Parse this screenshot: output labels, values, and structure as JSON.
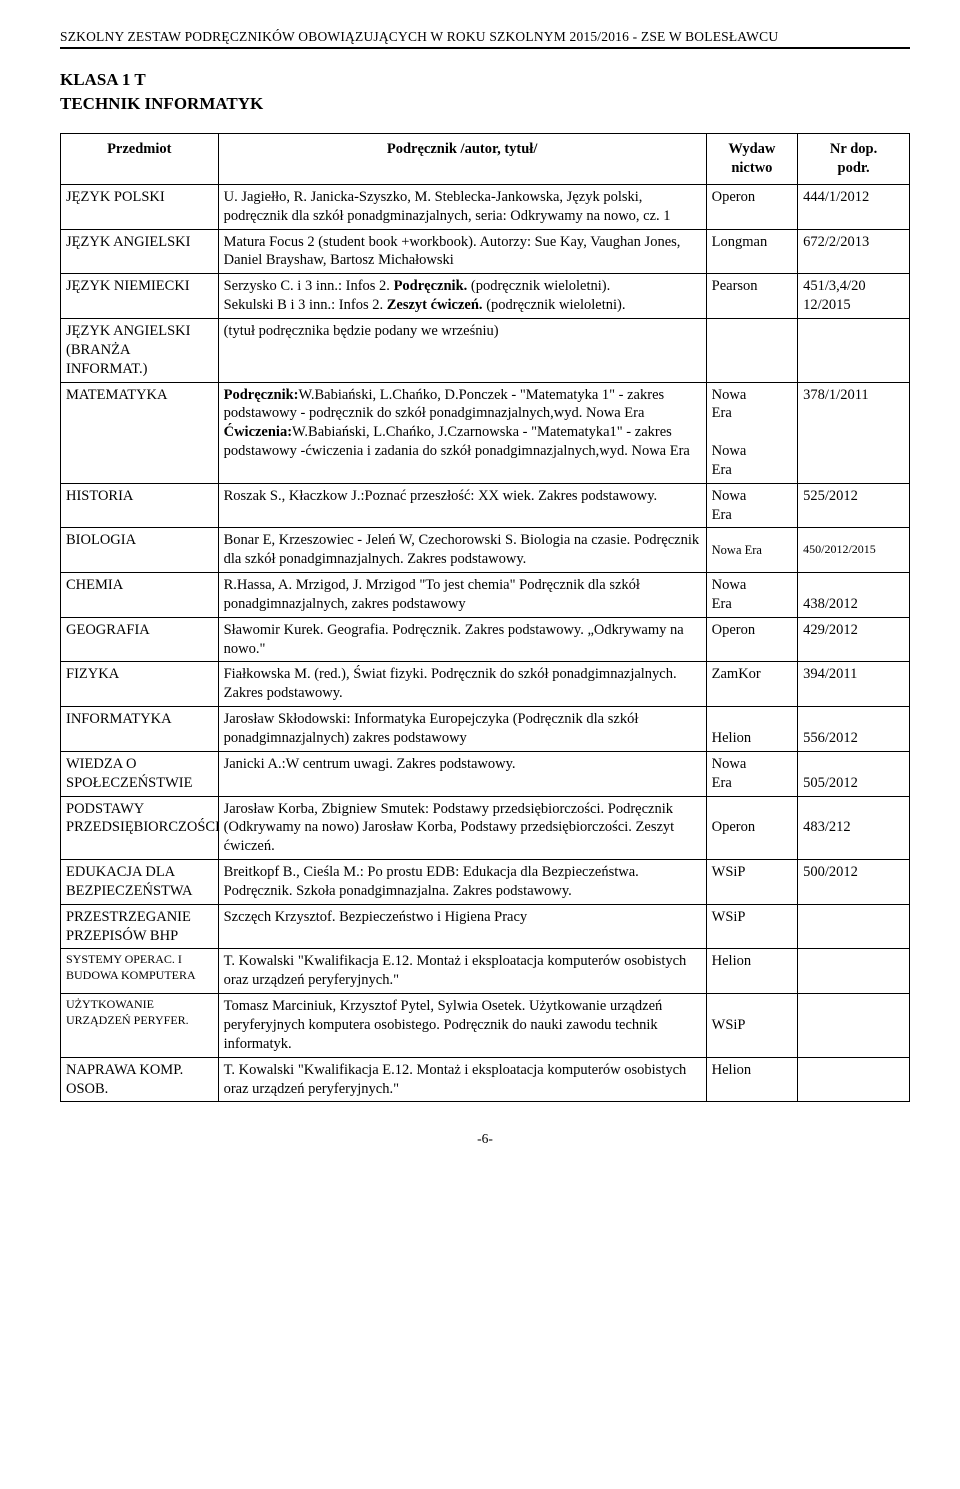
{
  "header": "SZKOLNY ZESTAW PODRĘCZNIKÓW OBOWIĄZUJĄCYCH W ROKU SZKOLNYM 2015/2016 - ZSE W BOLESŁAWCU",
  "klasa_line1": "KLASA 1 T",
  "klasa_line2": "TECHNIK  INFORMATYK",
  "columns": {
    "c1": "Przedmiot",
    "c2": "Podręcznik /autor, tytuł/",
    "c3_l1": "Wydaw",
    "c3_l2": "nictwo",
    "c4_l1": "Nr dop.",
    "c4_l2": "podr."
  },
  "rows": [
    {
      "subject": "JĘZYK POLSKI",
      "text": "U. Jagiełło, R. Janicka-Szyszko, M. Steblecka-Jankowska, Język polski, podręcznik dla szkół ponadgminazjalnych, seria: Odkrywamy na nowo, cz. 1",
      "pub": "Operon",
      "num": "444/1/2012"
    },
    {
      "subject": "JĘZYK ANGIELSKI",
      "text": "Matura Focus 2 (student book +workbook).\nAutorzy: Sue Kay, Vaughan Jones, Daniel Brayshaw, Bartosz Michałowski",
      "pub": "Longman",
      "num": "672/2/2013"
    },
    {
      "subject": "JĘZYK NIEMIECKI",
      "text_html": "Serzysko C. i 3 inn.: Infos 2. <b>Podręcznik.</b> (podręcznik wieloletni).<br>Sekulski B i 3 inn.: Infos 2. <b>Zeszyt ćwiczeń.</b> (podręcznik wieloletni).",
      "pub": "Pearson",
      "num": "451/3,4/20\n12/2015"
    },
    {
      "subject": "JĘZYK ANGIELSKI (BRANŻA INFORMAT.)",
      "text": "(tytuł podręcznika będzie podany we wrześniu)",
      "pub": "",
      "num": ""
    },
    {
      "subject": "MATEMATYKA",
      "text_html": "<b>Podręcznik:</b>W.Babiański, L.Chańko, D.Ponczek - \"Matematyka 1\" - zakres podstawowy - podręcznik do szkół ponadgimnazjalnych,wyd. Nowa Era<br><b>Ćwiczenia:</b>W.Babiański, L.Chańko, J.Czarnowska - \"Matematyka1\" - zakres podstawowy -ćwiczenia i zadania do szkół ponadgimnazjalnych,wyd. Nowa Era",
      "pub_html": "Nowa<br>Era<br><br>Nowa<br>Era",
      "num": "378/1/2011"
    },
    {
      "subject": "HISTORIA",
      "text": "Roszak S., Kłaczkow J.:Poznać przeszłość: XX wiek. Zakres podstawowy.",
      "pub_html": "Nowa<br>Era",
      "num": "525/2012"
    },
    {
      "subject": "BIOLOGIA",
      "text": "Bonar E, Krzeszowiec - Jeleń W, Czechorowski S. Biologia na czasie. Podręcznik dla szkół ponadgimnazjalnych. Zakres podstawowy.",
      "pub": "Nowa Era",
      "num": "450/2012/2015",
      "pub_small": true,
      "num_small": true,
      "pub_valign": "middle",
      "num_valign": "middle"
    },
    {
      "subject": "CHEMIA",
      "text": "R.Hassa, A. Mrzigod, J. Mrzigod \"To jest chemia\" Podręcznik dla szkół ponadgimnazjalnych, zakres podstawowy",
      "pub_html": "Nowa<br>Era",
      "num_html": "<br>438/2012"
    },
    {
      "subject": "GEOGRAFIA",
      "text": "Sławomir Kurek. Geografia. Podręcznik. Zakres podstawowy. „Odkrywamy na nowo.\"",
      "pub": "Operon",
      "num": "429/2012"
    },
    {
      "subject": "FIZYKA",
      "text": "Fiałkowska M. (red.), Świat fizyki. Podręcznik do szkół ponadgimnazjalnych. Zakres podstawowy.",
      "pub": "ZamKor",
      "num": "394/2011"
    },
    {
      "subject": "INFORMATYKA",
      "text": "Jarosław Skłodowski: Informatyka Europejczyka (Podręcznik dla szkół ponadgimnazjalnych) zakres podstawowy",
      "pub_html": "<br>Helion",
      "num_html": "<br>556/2012"
    },
    {
      "subject": "WIEDZA O SPOŁECZEŃSTWIE",
      "text": "Janicki A.:W centrum uwagi. Zakres podstawowy.",
      "pub_html": "Nowa<br>Era",
      "num_html": "<br>505/2012"
    },
    {
      "subject": "PODSTAWY PRZEDSIĘBIORCZOŚCI",
      "text": "Jarosław Korba, Zbigniew Smutek: Podstawy przedsiębiorczości. Podręcznik (Odkrywamy na nowo) Jarosław Korba, Podstawy przedsiębiorczości. Zeszyt ćwiczeń.",
      "pub_html": "<br>Operon",
      "num_html": "<br>483/212"
    },
    {
      "subject": "EDUKACJA DLA BEZPIECZEŃSTWA",
      "text": "Breitkopf B., Cieśla M.: Po prostu EDB: Edukacja dla Bezpieczeństwa. Podręcznik. Szkoła ponadgimnazjalna. Zakres podstawowy.",
      "pub": "WSiP",
      "num": "500/2012"
    },
    {
      "subject": "PRZESTRZEGANIE PRZEPISÓW BHP",
      "text": "Szczęch Krzysztof. Bezpieczeństwo i Higiena Pracy",
      "pub": "WSiP",
      "num": ""
    },
    {
      "subject": "SYSTEMY OPERAC. I BUDOWA KOMPUTERA",
      "subject_small": true,
      "text": "T. Kowalski \"Kwalifikacja E.12. Montaż i eksploatacja komputerów osobistych oraz urządzeń peryferyjnych.\"",
      "pub": "Helion",
      "num": ""
    },
    {
      "subject": "UŻYTKOWANIE URZĄDZEŃ PERYFER.",
      "subject_small": true,
      "text": "Tomasz Marciniuk, Krzysztof Pytel, Sylwia Osetek. Użytkowanie urządzeń peryferyjnych komputera osobistego. Podręcznik do nauki zawodu technik informatyk.",
      "pub_html": "<br>WSiP",
      "num": ""
    },
    {
      "subject": "NAPRAWA KOMP. OSOB.",
      "text": "T. Kowalski \"Kwalifikacja E.12. Montaż i eksploatacja komputerów osobistych oraz urządzeń peryferyjnych.\"",
      "pub": "Helion",
      "num": ""
    }
  ],
  "page_num": "-6-"
}
